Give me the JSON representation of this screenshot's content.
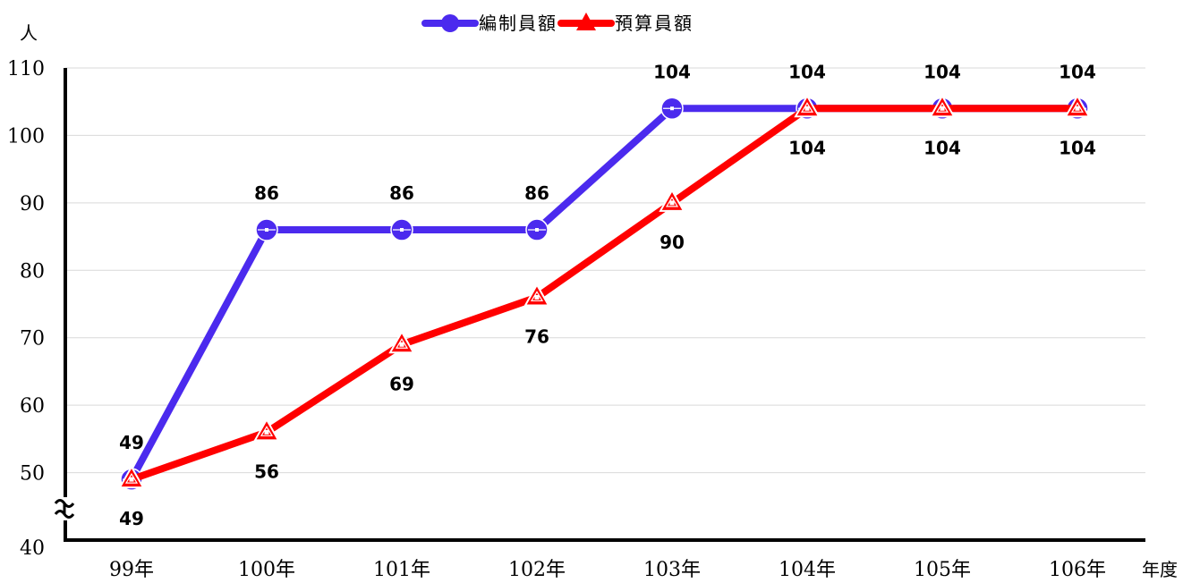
{
  "chart_data": {
    "type": "line",
    "title": "",
    "xlabel": "年度",
    "ylabel": "人",
    "categories": [
      "99年",
      "100年",
      "101年",
      "102年",
      "103年",
      "104年",
      "105年",
      "106年"
    ],
    "ylim": [
      40,
      110
    ],
    "yticks": [
      40,
      50,
      60,
      70,
      80,
      90,
      100,
      110
    ],
    "axis_break": true,
    "grid": true,
    "legend_position": "top-center",
    "series": [
      {
        "name": "編制員額",
        "values": [
          49,
          86,
          86,
          86,
          104,
          104,
          104,
          104
        ],
        "color": "#4B2AEE",
        "marker": "circle",
        "label_position": "above"
      },
      {
        "name": "預算員額",
        "values": [
          49,
          56,
          69,
          76,
          90,
          104,
          104,
          104
        ],
        "color": "#FF0000",
        "marker": "triangle",
        "label_position": "below"
      }
    ]
  }
}
